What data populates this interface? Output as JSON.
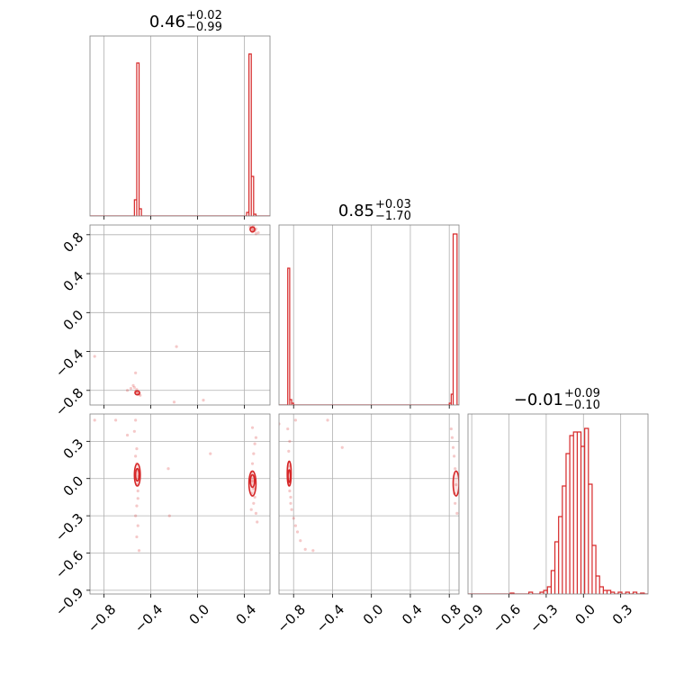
{
  "chart_data": {
    "type": "corner",
    "color": "#d62728",
    "grid": true,
    "parameters": [
      {
        "title": {
          "value": "0.46",
          "plus": "+0.02",
          "minus": "−0.99"
        },
        "range": [
          -0.92,
          0.62
        ],
        "hist": {
          "bins": [
            {
              "x0": -0.54,
              "x1": -0.52,
              "h": 0.09
            },
            {
              "x0": -0.52,
              "x1": -0.5,
              "h": 0.85
            },
            {
              "x0": -0.5,
              "x1": -0.48,
              "h": 0.04
            },
            {
              "x0": 0.42,
              "x1": 0.44,
              "h": 0.02
            },
            {
              "x0": 0.44,
              "x1": 0.46,
              "h": 0.9
            },
            {
              "x0": 0.46,
              "x1": 0.48,
              "h": 0.22
            },
            {
              "x0": 0.48,
              "x1": 0.5,
              "h": 0.01
            }
          ]
        }
      },
      {
        "title": {
          "value": "0.85",
          "plus": "+0.03",
          "minus": "−1.70"
        },
        "range": [
          -0.95,
          0.9
        ],
        "hist": {
          "bins": [
            {
              "x0": -0.86,
              "x1": -0.84,
              "h": 0.76
            },
            {
              "x0": -0.84,
              "x1": -0.82,
              "h": 0.03
            },
            {
              "x0": -0.82,
              "x1": -0.8,
              "h": 0.01
            },
            {
              "x0": 0.8,
              "x1": 0.82,
              "h": 0.01
            },
            {
              "x0": 0.82,
              "x1": 0.84,
              "h": 0.06
            },
            {
              "x0": 0.84,
              "x1": 0.88,
              "h": 0.95
            }
          ]
        }
      },
      {
        "title": {
          "value": "−0.01",
          "plus": "+0.09",
          "minus": "−0.10"
        },
        "range": [
          -0.93,
          0.52
        ],
        "hist": {
          "bins": [
            {
              "x0": -0.59,
              "x1": -0.56,
              "h": 0.005
            },
            {
              "x0": -0.44,
              "x1": -0.41,
              "h": 0.01
            },
            {
              "x0": -0.35,
              "x1": -0.32,
              "h": 0.01
            },
            {
              "x0": -0.32,
              "x1": -0.29,
              "h": 0.02
            },
            {
              "x0": -0.29,
              "x1": -0.26,
              "h": 0.04
            },
            {
              "x0": -0.26,
              "x1": -0.23,
              "h": 0.13
            },
            {
              "x0": -0.23,
              "x1": -0.2,
              "h": 0.29
            },
            {
              "x0": -0.2,
              "x1": -0.17,
              "h": 0.43
            },
            {
              "x0": -0.17,
              "x1": -0.14,
              "h": 0.6
            },
            {
              "x0": -0.14,
              "x1": -0.11,
              "h": 0.78
            },
            {
              "x0": -0.11,
              "x1": -0.08,
              "h": 0.88
            },
            {
              "x0": -0.08,
              "x1": -0.05,
              "h": 0.9
            },
            {
              "x0": -0.05,
              "x1": -0.02,
              "h": 0.9
            },
            {
              "x0": -0.02,
              "x1": 0.01,
              "h": 0.82
            },
            {
              "x0": 0.01,
              "x1": 0.04,
              "h": 0.92
            },
            {
              "x0": 0.04,
              "x1": 0.07,
              "h": 0.61
            },
            {
              "x0": 0.07,
              "x1": 0.1,
              "h": 0.27
            },
            {
              "x0": 0.1,
              "x1": 0.13,
              "h": 0.1
            },
            {
              "x0": 0.13,
              "x1": 0.16,
              "h": 0.04
            },
            {
              "x0": 0.16,
              "x1": 0.19,
              "h": 0.02
            },
            {
              "x0": 0.19,
              "x1": 0.22,
              "h": 0.02
            },
            {
              "x0": 0.22,
              "x1": 0.25,
              "h": 0.01
            },
            {
              "x0": 0.28,
              "x1": 0.31,
              "h": 0.01
            },
            {
              "x0": 0.34,
              "x1": 0.37,
              "h": 0.01
            },
            {
              "x0": 0.4,
              "x1": 0.43,
              "h": 0.01
            },
            {
              "x0": 0.46,
              "x1": 0.49,
              "h": 0.005
            }
          ]
        }
      }
    ],
    "ticks": [
      {
        "values": [
          -0.8,
          -0.4,
          0.0,
          0.4
        ],
        "labels": [
          "−0.8",
          "−0.4",
          "0.0",
          "0.4"
        ]
      },
      {
        "values": [
          -0.8,
          -0.4,
          0.0,
          0.4,
          0.8
        ],
        "labels": [
          "−0.8",
          "−0.4",
          "0.0",
          "0.4",
          "0.8"
        ]
      },
      {
        "values": [
          -0.9,
          -0.6,
          -0.3,
          0.0,
          0.3
        ],
        "labels": [
          "−0.9",
          "−0.6",
          "−0.3",
          "0.0",
          "0.3"
        ]
      }
    ],
    "pairs": [
      {
        "row": 1,
        "col": 0,
        "points": [
          [
            0.46,
            0.87
          ],
          [
            0.47,
            0.86
          ],
          [
            0.48,
            0.85
          ],
          [
            0.49,
            0.84
          ],
          [
            0.5,
            0.86
          ],
          [
            0.47,
            0.83
          ],
          [
            0.52,
            0.82
          ],
          [
            0.45,
            0.88
          ],
          [
            0.48,
            0.89
          ],
          [
            0.5,
            0.81
          ],
          [
            -0.51,
            -0.82
          ],
          [
            -0.52,
            -0.83
          ],
          [
            -0.5,
            -0.84
          ],
          [
            -0.53,
            -0.81
          ],
          [
            -0.49,
            -0.85
          ],
          [
            -0.52,
            -0.79
          ],
          [
            -0.54,
            -0.77
          ],
          [
            -0.55,
            -0.75
          ],
          [
            -0.53,
            -0.62
          ],
          [
            -0.6,
            -0.8
          ],
          [
            -0.57,
            -0.78
          ],
          [
            -0.88,
            -0.45
          ],
          [
            -0.18,
            -0.35
          ],
          [
            -0.2,
            -0.92
          ],
          [
            0.05,
            -0.9
          ]
        ],
        "contours": [
          {
            "cx": 0.47,
            "cy": 0.855,
            "rx": 0.02,
            "ry": 0.025
          },
          {
            "cx": -0.515,
            "cy": -0.825,
            "rx": 0.02,
            "ry": 0.02
          }
        ]
      },
      {
        "row": 2,
        "col": 0,
        "points": [
          [
            -0.52,
            0.12
          ],
          [
            -0.51,
            0.07
          ],
          [
            -0.5,
            0.02
          ],
          [
            -0.52,
            -0.05
          ],
          [
            -0.51,
            -0.1
          ],
          [
            -0.53,
            0.18
          ],
          [
            -0.52,
            0.24
          ],
          [
            -0.51,
            -0.16
          ],
          [
            -0.52,
            -0.22
          ],
          [
            -0.53,
            -0.3
          ],
          [
            -0.51,
            -0.38
          ],
          [
            -0.52,
            -0.47
          ],
          [
            -0.5,
            -0.58
          ],
          [
            -0.54,
            0.38
          ],
          [
            -0.53,
            0.47
          ],
          [
            -0.7,
            0.47
          ],
          [
            -0.88,
            0.47
          ],
          [
            -0.6,
            0.35
          ],
          [
            -0.24,
            -0.3
          ],
          [
            -0.25,
            0.08
          ],
          [
            0.11,
            0.2
          ],
          [
            0.46,
            0.05
          ],
          [
            0.47,
            -0.02
          ],
          [
            0.48,
            -0.08
          ],
          [
            0.46,
            -0.12
          ],
          [
            0.47,
            0.12
          ],
          [
            0.48,
            0.2
          ],
          [
            0.49,
            0.28
          ],
          [
            0.5,
            0.33
          ],
          [
            0.47,
            0.41
          ],
          [
            0.48,
            -0.2
          ],
          [
            0.5,
            -0.28
          ],
          [
            0.51,
            -0.35
          ],
          [
            0.49,
            -0.15
          ],
          [
            0.46,
            -0.25
          ]
        ],
        "contours": [
          {
            "cx": -0.515,
            "cy": 0.03,
            "rx": 0.025,
            "ry": 0.09
          },
          {
            "cx": -0.515,
            "cy": 0.03,
            "rx": 0.015,
            "ry": 0.05
          },
          {
            "cx": 0.47,
            "cy": -0.04,
            "rx": 0.03,
            "ry": 0.1
          },
          {
            "cx": 0.47,
            "cy": -0.02,
            "rx": 0.018,
            "ry": 0.05
          }
        ]
      },
      {
        "row": 2,
        "col": 1,
        "points": [
          [
            -0.85,
            0.1
          ],
          [
            -0.84,
            0.05
          ],
          [
            -0.85,
            -0.03
          ],
          [
            -0.84,
            -0.1
          ],
          [
            -0.83,
            -0.15
          ],
          [
            -0.83,
            -0.2
          ],
          [
            -0.82,
            -0.25
          ],
          [
            -0.8,
            -0.32
          ],
          [
            -0.78,
            -0.38
          ],
          [
            -0.76,
            -0.43
          ],
          [
            -0.73,
            -0.5
          ],
          [
            -0.68,
            -0.57
          ],
          [
            -0.6,
            -0.58
          ],
          [
            -0.85,
            0.22
          ],
          [
            -0.84,
            0.3
          ],
          [
            -0.86,
            0.4
          ],
          [
            -0.78,
            0.47
          ],
          [
            -0.45,
            0.47
          ],
          [
            -0.3,
            0.25
          ],
          [
            -0.95,
            0.44
          ],
          [
            0.82,
            0.4
          ],
          [
            0.83,
            0.33
          ],
          [
            0.84,
            0.25
          ],
          [
            0.85,
            0.18
          ],
          [
            0.86,
            0.08
          ],
          [
            0.87,
            -0.05
          ],
          [
            0.85,
            -0.12
          ],
          [
            0.86,
            -0.2
          ],
          [
            0.88,
            -0.28
          ]
        ],
        "contours": [
          {
            "cx": -0.845,
            "cy": 0.04,
            "rx": 0.02,
            "ry": 0.1
          },
          {
            "cx": -0.845,
            "cy": 0.02,
            "rx": 0.012,
            "ry": 0.05
          },
          {
            "cx": 0.87,
            "cy": -0.04,
            "rx": 0.03,
            "ry": 0.1
          }
        ]
      }
    ]
  }
}
